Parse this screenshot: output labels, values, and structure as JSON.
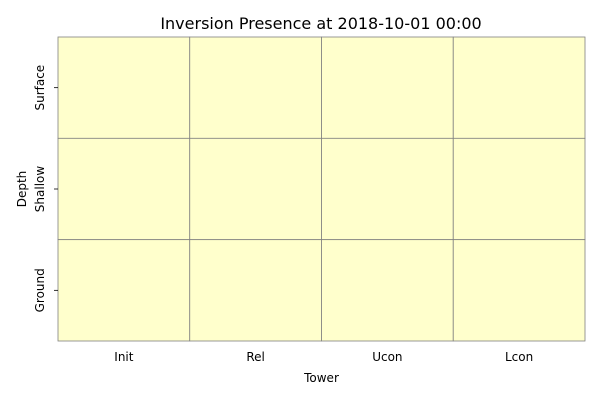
{
  "chart_data": {
    "type": "heatmap",
    "title": "Inversion Presence at 2018-10-01 00:00",
    "xlabel": "Tower",
    "ylabel": "Depth",
    "x_categories": [
      "Init",
      "Rel",
      "Ucon",
      "Lcon"
    ],
    "y_categories": [
      "Surface",
      "Shallow",
      "Ground"
    ],
    "values": [
      [
        0,
        0,
        0,
        0
      ],
      [
        0,
        0,
        0,
        0
      ],
      [
        0,
        0,
        0,
        0
      ]
    ],
    "colors": {
      "cell_fill": "#ffffcc",
      "grid_line": "#808080",
      "text": "#000000"
    },
    "grid": true,
    "colorbar": false
  }
}
